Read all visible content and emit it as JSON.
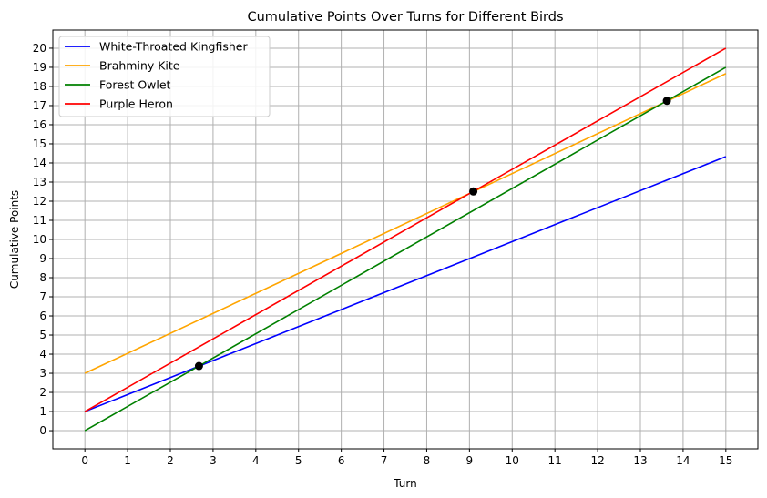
{
  "chart_data": {
    "type": "line",
    "title": "Cumulative Points Over Turns for Different Birds",
    "xlabel": "Turn",
    "ylabel": "Cumulative Points",
    "xlim": [
      -0.75,
      15.75
    ],
    "ylim": [
      -0.95,
      20.95
    ],
    "x_ticks": [
      0,
      1,
      2,
      3,
      4,
      5,
      6,
      7,
      8,
      9,
      10,
      11,
      12,
      13,
      14,
      15
    ],
    "y_ticks": [
      0,
      1,
      2,
      3,
      4,
      5,
      6,
      7,
      8,
      9,
      10,
      11,
      12,
      13,
      14,
      15,
      16,
      17,
      18,
      19,
      20
    ],
    "grid": true,
    "legend_position": "top-left",
    "series": [
      {
        "name": "White-Throated Kingfisher",
        "color": "#0000ff",
        "x": [
          0,
          15
        ],
        "y": [
          1,
          14.33
        ]
      },
      {
        "name": "Brahminy Kite",
        "color": "#ffa500",
        "x": [
          0,
          15
        ],
        "y": [
          3,
          18.67
        ]
      },
      {
        "name": "Forest Owlet",
        "color": "#008000",
        "x": [
          0,
          15
        ],
        "y": [
          0,
          19
        ]
      },
      {
        "name": "Purple Heron",
        "color": "#ff0000",
        "x": [
          0,
          15
        ],
        "y": [
          1,
          20
        ]
      }
    ],
    "intersection_points": [
      {
        "x": 2.67,
        "y": 3.38
      },
      {
        "x": 9.09,
        "y": 12.51
      },
      {
        "x": 13.62,
        "y": 17.25
      }
    ],
    "point_color": "#000000"
  }
}
